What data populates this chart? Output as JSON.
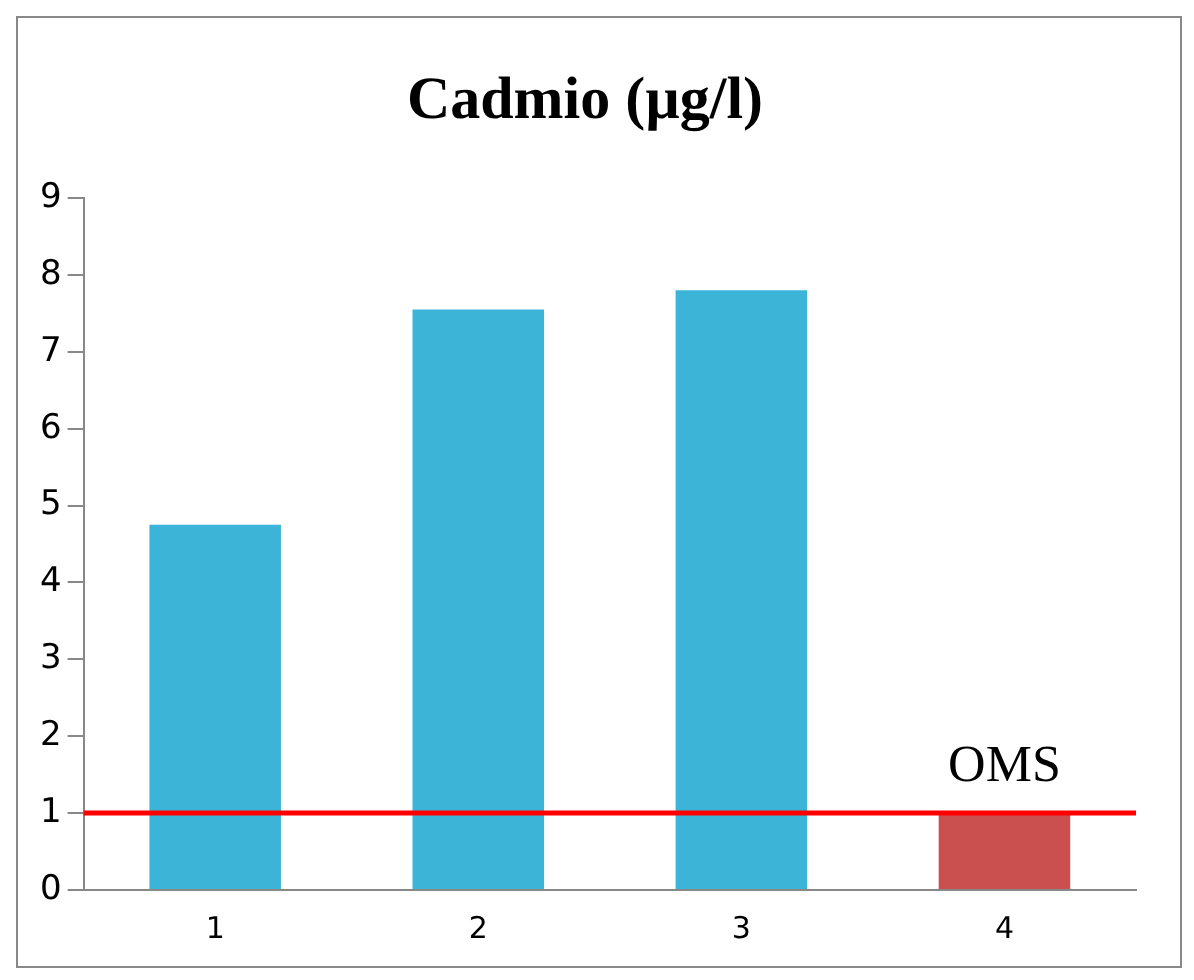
{
  "chart_data": {
    "type": "bar",
    "title": "Cadmio (µg/l)",
    "categories": [
      "1",
      "2",
      "3",
      "4"
    ],
    "values": [
      4.75,
      7.55,
      7.8,
      1.0
    ],
    "colors": [
      "#3bb4d8",
      "#3bb4d8",
      "#3bb4d8",
      "#c9504f"
    ],
    "ylim": [
      0,
      9
    ],
    "yticks": [
      0,
      1,
      2,
      3,
      4,
      5,
      6,
      7,
      8,
      9
    ],
    "grid": false,
    "ref_lines": [
      {
        "axis": "y",
        "value": 1,
        "color": "#ff0000"
      }
    ],
    "annotations": [
      {
        "text": "OMS",
        "x": "4",
        "y": 1
      }
    ]
  }
}
